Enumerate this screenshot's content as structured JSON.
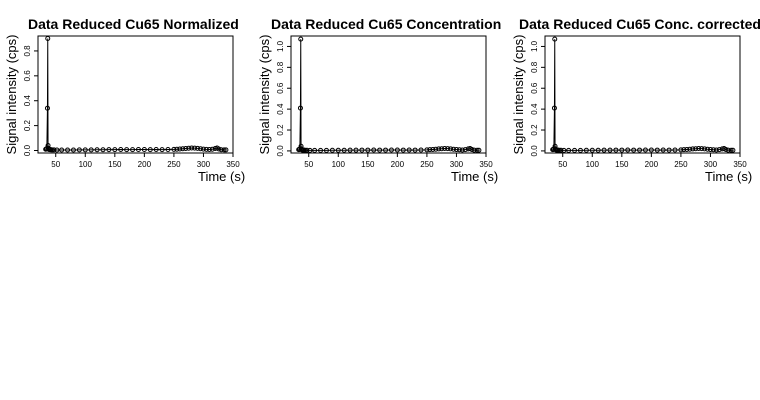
{
  "chart_data": [
    {
      "type": "line",
      "title": "Data Reduced Cu65 Normalized",
      "xlabel": "Time (s)",
      "ylabel": "Signal intensity (cps)",
      "xlim": [
        20,
        350
      ],
      "ylim": [
        -0.02,
        0.92
      ],
      "xticks": [
        50,
        100,
        150,
        200,
        250,
        300,
        350
      ],
      "yticks": [
        0.0,
        0.2,
        0.4,
        0.6,
        0.8
      ],
      "ytick_labels": [
        "0.0",
        "0.2",
        "0.4",
        "0.6",
        "0.8"
      ],
      "grid": false,
      "points": {
        "x": [
          33,
          34,
          35,
          36,
          36.5,
          37,
          37.5,
          38,
          39,
          40,
          41,
          42,
          44,
          47,
          52,
          60,
          70,
          80,
          90,
          100,
          110,
          120,
          130,
          140,
          150,
          160,
          170,
          180,
          190,
          200,
          210,
          220,
          230,
          240,
          250,
          255,
          260,
          265,
          270,
          275,
          280,
          285,
          290,
          295,
          300,
          305,
          310,
          315,
          320,
          323,
          326,
          330,
          335,
          338
        ],
        "y": [
          0.01,
          0.012,
          0.015,
          0.34,
          0.9,
          0.04,
          0.018,
          0.01,
          0.008,
          0.007,
          0.007,
          0.006,
          0.005,
          0.005,
          0.004,
          0.004,
          0.004,
          0.004,
          0.005,
          0.005,
          0.005,
          0.006,
          0.006,
          0.007,
          0.007,
          0.008,
          0.007,
          0.007,
          0.008,
          0.008,
          0.007,
          0.008,
          0.007,
          0.008,
          0.009,
          0.01,
          0.012,
          0.014,
          0.016,
          0.018,
          0.02,
          0.019,
          0.017,
          0.014,
          0.011,
          0.009,
          0.008,
          0.01,
          0.016,
          0.02,
          0.012,
          0.006,
          0.005,
          0.005
        ]
      }
    },
    {
      "type": "line",
      "title": "Data Reduced Cu65 Concentration",
      "xlabel": "Time (s)",
      "ylabel": "Signal intensity (cps)",
      "xlim": [
        20,
        350
      ],
      "ylim": [
        -0.02,
        1.1
      ],
      "xticks": [
        50,
        100,
        150,
        200,
        250,
        300,
        350
      ],
      "yticks": [
        0.0,
        0.2,
        0.4,
        0.6,
        0.8,
        1.0
      ],
      "ytick_labels": [
        "0.0",
        "0.2",
        "0.4",
        "0.6",
        "0.8",
        "1.0"
      ],
      "grid": false,
      "points": {
        "x": [
          33,
          34,
          35,
          36,
          36.5,
          37,
          37.5,
          38,
          39,
          40,
          41,
          42,
          44,
          47,
          52,
          60,
          70,
          80,
          90,
          100,
          110,
          120,
          130,
          140,
          150,
          160,
          170,
          180,
          190,
          200,
          210,
          220,
          230,
          240,
          250,
          255,
          260,
          265,
          270,
          275,
          280,
          285,
          290,
          295,
          300,
          305,
          310,
          315,
          320,
          323,
          326,
          330,
          335,
          338
        ],
        "y": [
          0.012,
          0.014,
          0.018,
          0.41,
          1.07,
          0.045,
          0.02,
          0.012,
          0.009,
          0.008,
          0.008,
          0.007,
          0.006,
          0.006,
          0.005,
          0.005,
          0.005,
          0.005,
          0.006,
          0.006,
          0.006,
          0.007,
          0.007,
          0.008,
          0.008,
          0.009,
          0.008,
          0.008,
          0.009,
          0.009,
          0.008,
          0.009,
          0.008,
          0.009,
          0.01,
          0.012,
          0.014,
          0.016,
          0.019,
          0.021,
          0.023,
          0.022,
          0.02,
          0.016,
          0.013,
          0.011,
          0.009,
          0.012,
          0.019,
          0.023,
          0.014,
          0.007,
          0.006,
          0.006
        ]
      }
    },
    {
      "type": "line",
      "title": "Data Reduced Cu65 Conc. corrected",
      "xlabel": "Time (s)",
      "ylabel": "Signal intensity (cps)",
      "xlim": [
        20,
        350
      ],
      "ylim": [
        -0.02,
        1.1
      ],
      "xticks": [
        50,
        100,
        150,
        200,
        250,
        300,
        350
      ],
      "yticks": [
        0.0,
        0.2,
        0.4,
        0.6,
        0.8,
        1.0
      ],
      "ytick_labels": [
        "0.0",
        "0.2",
        "0.4",
        "0.6",
        "0.8",
        "1.0"
      ],
      "grid": false,
      "points": {
        "x": [
          33,
          34,
          35,
          36,
          36.5,
          37,
          37.5,
          38,
          39,
          40,
          41,
          42,
          44,
          47,
          52,
          60,
          70,
          80,
          90,
          100,
          110,
          120,
          130,
          140,
          150,
          160,
          170,
          180,
          190,
          200,
          210,
          220,
          230,
          240,
          250,
          255,
          260,
          265,
          270,
          275,
          280,
          285,
          290,
          295,
          300,
          305,
          310,
          315,
          320,
          323,
          326,
          330,
          335,
          338
        ],
        "y": [
          0.012,
          0.014,
          0.018,
          0.41,
          1.07,
          0.045,
          0.02,
          0.012,
          0.009,
          0.008,
          0.008,
          0.007,
          0.006,
          0.006,
          0.005,
          0.005,
          0.005,
          0.005,
          0.006,
          0.006,
          0.006,
          0.007,
          0.007,
          0.008,
          0.008,
          0.009,
          0.008,
          0.008,
          0.009,
          0.009,
          0.008,
          0.009,
          0.008,
          0.009,
          0.01,
          0.012,
          0.014,
          0.016,
          0.019,
          0.021,
          0.023,
          0.022,
          0.02,
          0.016,
          0.013,
          0.011,
          0.009,
          0.012,
          0.019,
          0.023,
          0.014,
          0.007,
          0.006,
          0.006
        ]
      }
    }
  ]
}
